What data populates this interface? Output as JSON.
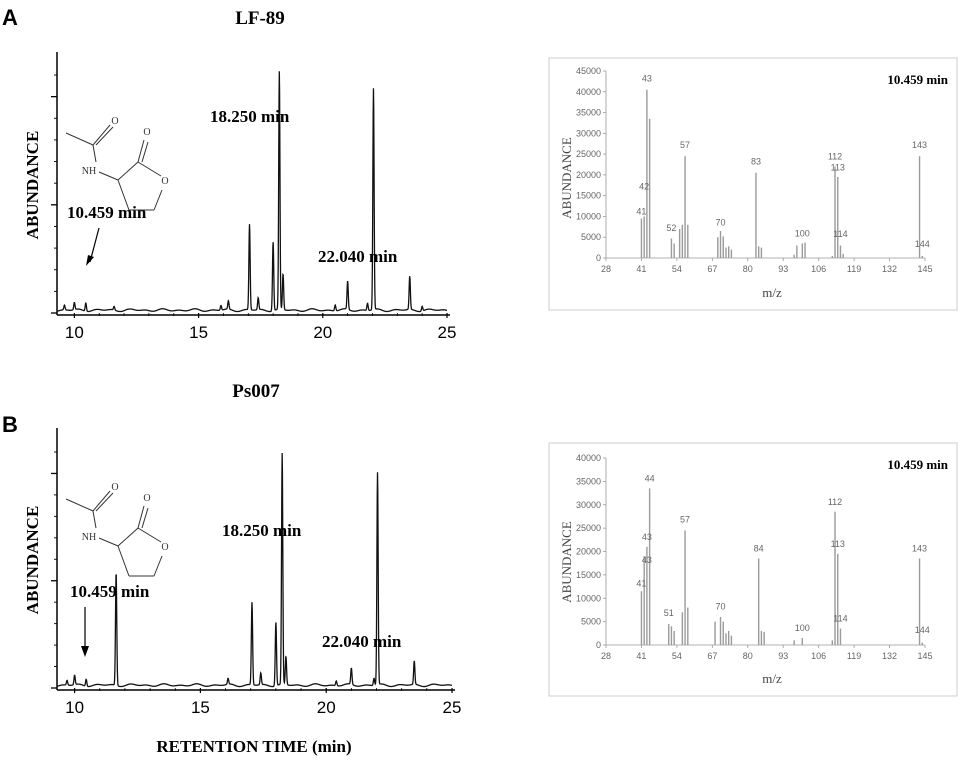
{
  "panels": [
    {
      "letter": "A",
      "chromatogram": {
        "title": "LF-89",
        "ylabel": "ABUNDANCE",
        "xlabel": "",
        "xlim": [
          9.3,
          25
        ],
        "xticks": [
          10,
          15,
          20,
          25
        ],
        "annotations": [
          {
            "text": "10.459 min",
            "x": 10.459
          },
          {
            "text": "18.250 min",
            "x": 18.25
          },
          {
            "text": "22.040 min",
            "x": 22.04
          }
        ],
        "peaks": [
          [
            9.6,
            0.02
          ],
          [
            10.0,
            0.03
          ],
          [
            10.46,
            0.035
          ],
          [
            11.6,
            0.015
          ],
          [
            15.9,
            0.02
          ],
          [
            16.2,
            0.035
          ],
          [
            17.05,
            0.36
          ],
          [
            17.4,
            0.05
          ],
          [
            18.0,
            0.29
          ],
          [
            18.25,
            1.0
          ],
          [
            18.4,
            0.15
          ],
          [
            20.5,
            0.025
          ],
          [
            21.0,
            0.12
          ],
          [
            21.8,
            0.03
          ],
          [
            22.04,
            0.93
          ],
          [
            23.5,
            0.14
          ],
          [
            24.0,
            0.02
          ]
        ]
      },
      "spectrum": {
        "type": "bar",
        "title": "10.459 min",
        "ylabel": "ABUNDANCE",
        "xlabel": "m/z",
        "ylim": [
          0,
          45000
        ],
        "yticks": [
          0,
          5000,
          10000,
          15000,
          20000,
          25000,
          30000,
          35000,
          40000,
          45000
        ],
        "xticks": [
          28,
          41,
          54,
          67,
          80,
          93,
          106,
          119,
          132,
          145
        ],
        "bars": [
          [
            41,
            9500
          ],
          [
            42,
            10000
          ],
          [
            43,
            40500
          ],
          [
            44,
            33500
          ],
          [
            52,
            4700
          ],
          [
            53,
            3500
          ],
          [
            55,
            7000
          ],
          [
            56,
            8000
          ],
          [
            57,
            24500
          ],
          [
            58,
            8000
          ],
          [
            69,
            5000
          ],
          [
            70,
            6500
          ],
          [
            71,
            5200
          ],
          [
            72,
            2500
          ],
          [
            73,
            2800
          ],
          [
            74,
            2000
          ],
          [
            83,
            20500
          ],
          [
            84,
            2800
          ],
          [
            85,
            2500
          ],
          [
            97,
            800
          ],
          [
            98,
            3000
          ],
          [
            100,
            3500
          ],
          [
            101,
            3700
          ],
          [
            111,
            500
          ],
          [
            112,
            22000
          ],
          [
            113,
            19500
          ],
          [
            114,
            3000
          ],
          [
            115,
            1000
          ],
          [
            143,
            24500
          ],
          [
            144,
            500
          ]
        ],
        "peak_labels": [
          {
            "mz": 41,
            "label": "41",
            "h": 10500
          },
          {
            "mz": 42,
            "label": "42",
            "h": 16500
          },
          {
            "mz": 43,
            "label": "43",
            "h": 42500
          },
          {
            "mz": 52,
            "label": "52",
            "h": 6500
          },
          {
            "mz": 57,
            "label": "57",
            "h": 26500
          },
          {
            "mz": 70,
            "label": "70",
            "h": 7800
          },
          {
            "mz": 83,
            "label": "83",
            "h": 22500
          },
          {
            "mz": 100,
            "label": "100",
            "h": 5200
          },
          {
            "mz": 112,
            "label": "112",
            "h": 23700
          },
          {
            "mz": 113,
            "label": "113",
            "h": 21000
          },
          {
            "mz": 114,
            "label": "114",
            "h": 5000
          },
          {
            "mz": 143,
            "label": "143",
            "h": 26500
          },
          {
            "mz": 144,
            "label": "144",
            "h": 2600
          }
        ]
      }
    },
    {
      "letter": "B",
      "chromatogram": {
        "title": "Ps007",
        "ylabel": "ABUNDANCE",
        "xlabel": "RETENTION TIME (min)",
        "xlim": [
          9.3,
          25
        ],
        "xticks": [
          10,
          15,
          20,
          25
        ],
        "annotations": [
          {
            "text": "10.459 min",
            "x": 10.459
          },
          {
            "text": "18.250 min",
            "x": 18.25
          },
          {
            "text": "22.040 min",
            "x": 22.04
          }
        ],
        "peaks": [
          [
            9.7,
            0.02
          ],
          [
            10.0,
            0.04
          ],
          [
            10.46,
            0.03
          ],
          [
            11.65,
            0.48
          ],
          [
            16.1,
            0.025
          ],
          [
            17.05,
            0.35
          ],
          [
            17.4,
            0.05
          ],
          [
            18.0,
            0.27
          ],
          [
            18.25,
            0.98
          ],
          [
            18.4,
            0.12
          ],
          [
            20.4,
            0.02
          ],
          [
            21.0,
            0.07
          ],
          [
            21.9,
            0.03
          ],
          [
            22.04,
            0.9
          ],
          [
            23.5,
            0.1
          ]
        ]
      },
      "spectrum": {
        "type": "bar",
        "title": "10.459 min",
        "ylabel": "ABUNDANCE",
        "xlabel": "m/z",
        "ylim": [
          0,
          40000
        ],
        "yticks": [
          0,
          5000,
          10000,
          15000,
          20000,
          25000,
          30000,
          35000,
          40000
        ],
        "xticks": [
          28,
          41,
          54,
          67,
          80,
          93,
          106,
          119,
          132,
          145
        ],
        "bars": [
          [
            41,
            11500
          ],
          [
            42,
            19000
          ],
          [
            43,
            21000
          ],
          [
            44,
            33500
          ],
          [
            51,
            4500
          ],
          [
            52,
            4000
          ],
          [
            53,
            3000
          ],
          [
            56,
            7000
          ],
          [
            57,
            24500
          ],
          [
            58,
            8000
          ],
          [
            68,
            5000
          ],
          [
            70,
            6000
          ],
          [
            71,
            5000
          ],
          [
            72,
            2500
          ],
          [
            73,
            3000
          ],
          [
            74,
            2000
          ],
          [
            84,
            18500
          ],
          [
            85,
            3000
          ],
          [
            86,
            2800
          ],
          [
            97,
            1000
          ],
          [
            100,
            1500
          ],
          [
            111,
            1000
          ],
          [
            112,
            28500
          ],
          [
            113,
            19500
          ],
          [
            114,
            3500
          ],
          [
            143,
            18500
          ],
          [
            144,
            500
          ]
        ],
        "peak_labels": [
          {
            "mz": 41,
            "label": "41",
            "h": 12500
          },
          {
            "mz": 43,
            "label": "43",
            "h": 17500
          },
          {
            "mz": 43,
            "label": "43",
            "h": 22500
          },
          {
            "mz": 44,
            "label": "44",
            "h": 35000
          },
          {
            "mz": 51,
            "label": "51",
            "h": 6200
          },
          {
            "mz": 57,
            "label": "57",
            "h": 26200
          },
          {
            "mz": 70,
            "label": "70",
            "h": 7600
          },
          {
            "mz": 84,
            "label": "84",
            "h": 20000
          },
          {
            "mz": 100,
            "label": "100",
            "h": 3000
          },
          {
            "mz": 112,
            "label": "112",
            "h": 30000
          },
          {
            "mz": 113,
            "label": "113",
            "h": 21000
          },
          {
            "mz": 114,
            "label": "114",
            "h": 5000
          },
          {
            "mz": 143,
            "label": "143",
            "h": 20000
          },
          {
            "mz": 144,
            "label": "144",
            "h": 2600
          }
        ]
      }
    }
  ],
  "structure": {
    "atoms": {
      "nh": "NH",
      "o1": "O",
      "o2": "O",
      "o3": "O"
    }
  }
}
